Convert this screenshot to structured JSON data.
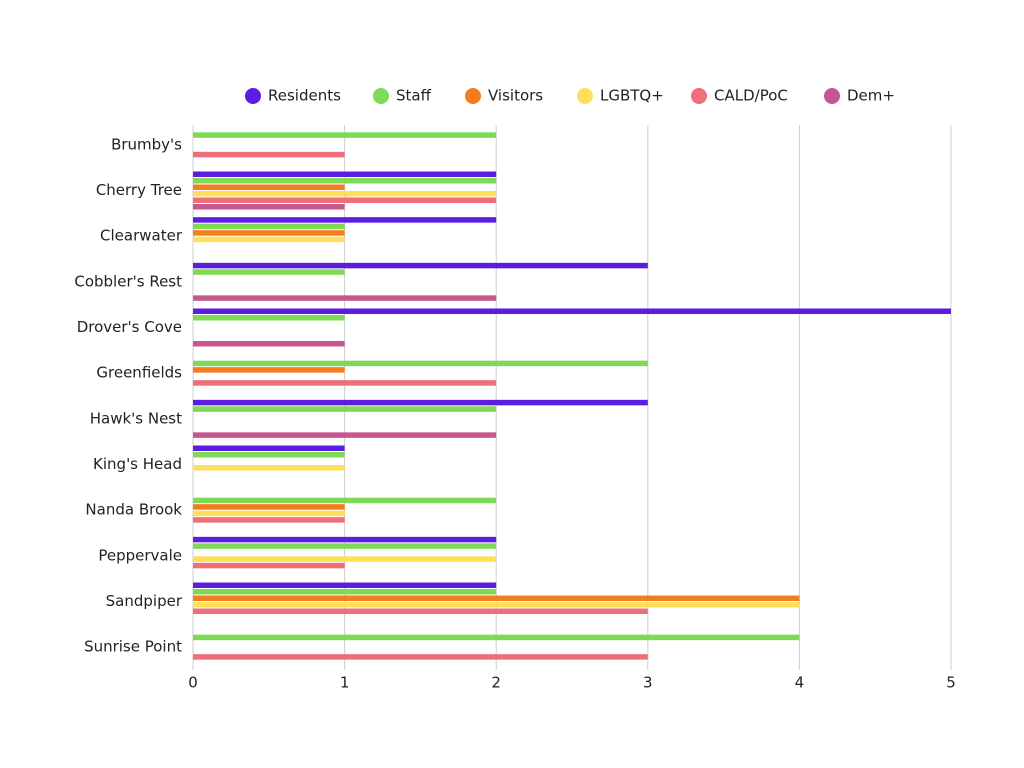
{
  "chart_data": {
    "type": "bar",
    "orientation": "horizontal",
    "categories": [
      "Brumby's",
      "Cherry Tree",
      "Clearwater",
      "Cobbler's Rest",
      "Drover's Cove",
      "Greenfields",
      "Hawk's Nest",
      "King's Head",
      "Nanda Brook",
      "Peppervale",
      "Sandpiper",
      "Sunrise Point"
    ],
    "series": [
      {
        "name": "Residents",
        "color": "#5b1ee0",
        "values": [
          0,
          2,
          2,
          3,
          5,
          0,
          3,
          1,
          0,
          2,
          2,
          0
        ]
      },
      {
        "name": "Staff",
        "color": "#7ed957",
        "values": [
          2,
          2,
          1,
          1,
          1,
          3,
          2,
          1,
          2,
          2,
          2,
          4
        ]
      },
      {
        "name": "Visitors",
        "color": "#f57c1f",
        "values": [
          0,
          1,
          1,
          0,
          0,
          1,
          0,
          0,
          1,
          0,
          4,
          0
        ]
      },
      {
        "name": "LGBTQ+",
        "color": "#ffde59",
        "values": [
          0,
          2,
          1,
          0,
          0,
          0,
          0,
          1,
          1,
          2,
          4,
          0
        ]
      },
      {
        "name": "CALD/PoC",
        "color": "#ee6e7a",
        "values": [
          1,
          2,
          0,
          0,
          0,
          2,
          0,
          0,
          1,
          1,
          3,
          3
        ]
      },
      {
        "name": "Dem+",
        "color": "#c9578f",
        "values": [
          0,
          1,
          0,
          2,
          1,
          0,
          2,
          0,
          0,
          0,
          0,
          0
        ]
      }
    ],
    "xlim": [
      0,
      5
    ],
    "xticks": [
      0,
      1,
      2,
      3,
      4,
      5
    ],
    "grid": true,
    "legend": "top"
  }
}
